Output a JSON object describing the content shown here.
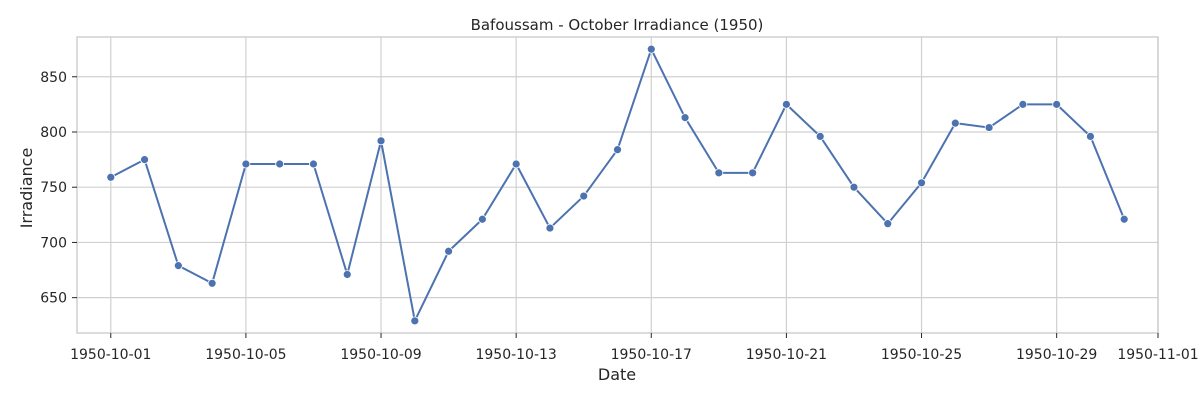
{
  "chart_data": {
    "type": "line",
    "title": "Bafoussam - October Irradiance (1950)",
    "xlabel": "Date",
    "ylabel": "Irradiance",
    "x_ticks": [
      "1950-10-01",
      "1950-10-05",
      "1950-10-09",
      "1950-10-13",
      "1950-10-17",
      "1950-10-21",
      "1950-10-25",
      "1950-10-29",
      "1950-11-01"
    ],
    "y_ticks": [
      650,
      700,
      750,
      800,
      850
    ],
    "ylim": [
      618,
      886
    ],
    "xlim": [
      "1950-09-30",
      "1950-11-01"
    ],
    "grid": true,
    "line_color": "#4c72b0",
    "series": [
      {
        "x": [
          "1950-10-01",
          "1950-10-02",
          "1950-10-03",
          "1950-10-04",
          "1950-10-05",
          "1950-10-06",
          "1950-10-07",
          "1950-10-08",
          "1950-10-09",
          "1950-10-10",
          "1950-10-11",
          "1950-10-12",
          "1950-10-13",
          "1950-10-14",
          "1950-10-15",
          "1950-10-16",
          "1950-10-17",
          "1950-10-18",
          "1950-10-19",
          "1950-10-20",
          "1950-10-21",
          "1950-10-22",
          "1950-10-23",
          "1950-10-24",
          "1950-10-25",
          "1950-10-26",
          "1950-10-27",
          "1950-10-28",
          "1950-10-29",
          "1950-10-30",
          "1950-10-31"
        ],
        "values": [
          759,
          775,
          679,
          663,
          771,
          771,
          771,
          671,
          792,
          629,
          692,
          721,
          771,
          713,
          742,
          784,
          875,
          813,
          763,
          763,
          825,
          796,
          750,
          717,
          754,
          808,
          804,
          825,
          825,
          796,
          721
        ]
      }
    ]
  }
}
